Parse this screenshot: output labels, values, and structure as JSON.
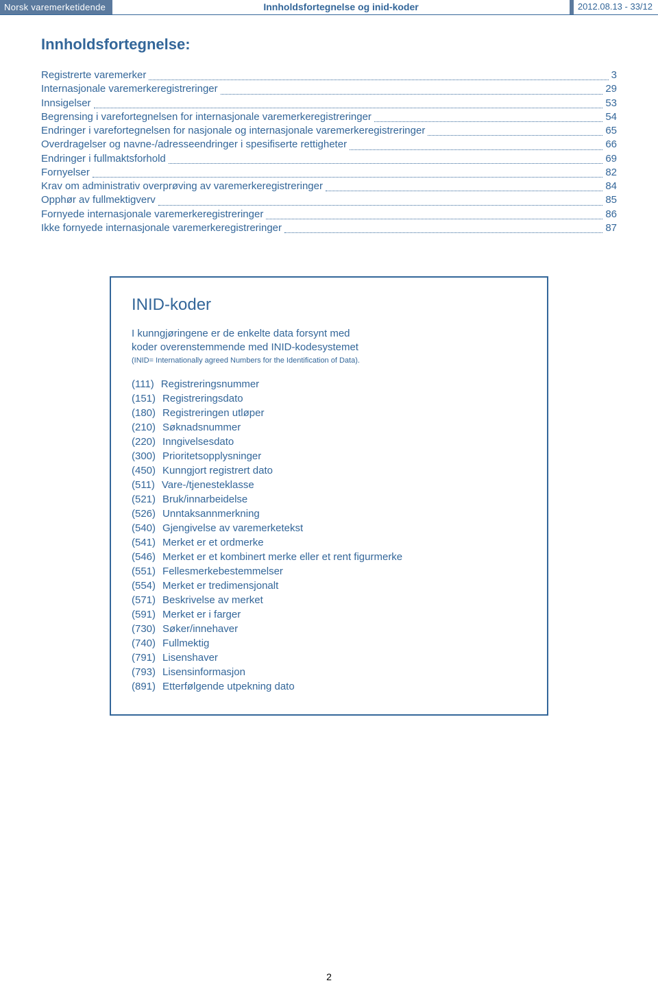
{
  "header": {
    "brand": "Norsk varemerketidende",
    "title": "Innholdsfortegnelse og inid-koder",
    "issue": "2012.08.13 - 33/12"
  },
  "toc": {
    "title": "Innholdsfortegnelse:",
    "items": [
      {
        "label": "Registrerte varemerker",
        "page": "3"
      },
      {
        "label": "Internasjonale varemerkeregistreringer",
        "page": "29"
      },
      {
        "label": "Innsigelser",
        "page": "53"
      },
      {
        "label": "Begrensing i varefortegnelsen for internasjonale varemerkeregistreringer",
        "page": "54"
      },
      {
        "label": "Endringer i varefortegnelsen for nasjonale og internasjonale varemerkeregistreringer",
        "page": "65"
      },
      {
        "label": "Overdragelser og navne-/adresseendringer i spesifiserte rettigheter",
        "page": "66"
      },
      {
        "label": "Endringer i fullmaktsforhold",
        "page": "69"
      },
      {
        "label": "Fornyelser",
        "page": "82"
      },
      {
        "label": "Krav om administrativ overprøving av varemerkeregistreringer",
        "page": "84"
      },
      {
        "label": "Opphør av fullmektigverv",
        "page": "85"
      },
      {
        "label": "Fornyede internasjonale varemerkeregistreringer",
        "page": "86"
      },
      {
        "label": "Ikke fornyede internasjonale varemerkeregistreringer",
        "page": "87"
      }
    ]
  },
  "inid": {
    "title": "INID-koder",
    "intro_line1": "I kunngjøringene er de enkelte data forsynt med",
    "intro_line2": "koder overenstemmende med INID-kodesystemet",
    "intro_sub": "(INID= Internationally agreed Numbers for the Identification of Data).",
    "codes": [
      {
        "num": "(111)",
        "desc": "Registreringsnummer"
      },
      {
        "num": "(151)",
        "desc": "Registreringsdato"
      },
      {
        "num": "(180)",
        "desc": "Registreringen utløper"
      },
      {
        "num": "(210)",
        "desc": "Søknadsnummer"
      },
      {
        "num": "(220)",
        "desc": "Inngivelsesdato"
      },
      {
        "num": "(300)",
        "desc": "Prioritetsopplysninger"
      },
      {
        "num": "(450)",
        "desc": "Kunngjort registrert dato"
      },
      {
        "num": "(511)",
        "desc": "Vare-/tjenesteklasse"
      },
      {
        "num": "(521)",
        "desc": "Bruk/innarbeidelse"
      },
      {
        "num": "(526)",
        "desc": "Unntaksannmerkning"
      },
      {
        "num": "(540)",
        "desc": "Gjengivelse av varemerketekst"
      },
      {
        "num": "(541)",
        "desc": "Merket er et ordmerke"
      },
      {
        "num": "(546)",
        "desc": "Merket er et kombinert merke eller et rent figurmerke"
      },
      {
        "num": "(551)",
        "desc": "Fellesmerkebestemmelser"
      },
      {
        "num": "(554)",
        "desc": "Merket er tredimensjonalt"
      },
      {
        "num": "(571)",
        "desc": "Beskrivelse av merket"
      },
      {
        "num": "(591)",
        "desc": "Merket er i farger"
      },
      {
        "num": "(730)",
        "desc": "Søker/innehaver"
      },
      {
        "num": "(740)",
        "desc": "Fullmektig"
      },
      {
        "num": "(791)",
        "desc": "Lisenshaver"
      },
      {
        "num": "(793)",
        "desc": "Lisensinformasjon"
      },
      {
        "num": "(891)",
        "desc": "Etterfølgende utpekning dato"
      }
    ]
  },
  "pageNumber": "2",
  "style": {
    "brand_bg": "#5b7a9e",
    "accent": "#336699",
    "page_bg": "#ffffff",
    "body_font": "Arial",
    "toc_title_fontsize": 22,
    "toc_item_fontsize": 15,
    "inid_title_fontsize": 24,
    "inid_intro_fontsize": 15,
    "inid_sub_fontsize": 11,
    "inid_code_fontsize": 15,
    "box_border_width": 2
  }
}
